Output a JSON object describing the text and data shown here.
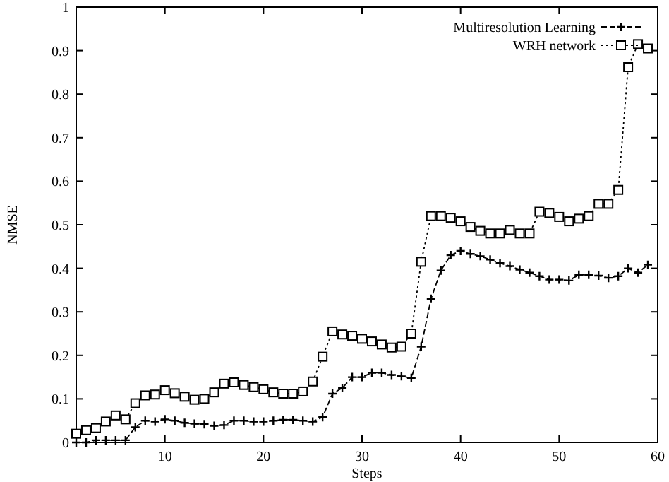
{
  "chart_data": {
    "type": "line",
    "xlabel": "Steps",
    "ylabel": "NMSE",
    "xlim": [
      1,
      60
    ],
    "ylim": [
      0,
      1
    ],
    "xticks": [
      10,
      20,
      30,
      40,
      50,
      60
    ],
    "yticks": [
      0,
      0.1,
      0.2,
      0.3,
      0.4,
      0.5,
      0.6,
      0.7,
      0.8,
      0.9,
      1
    ],
    "legend": "top right",
    "grid": false,
    "x": [
      1,
      2,
      3,
      4,
      5,
      6,
      7,
      8,
      9,
      10,
      11,
      12,
      13,
      14,
      15,
      16,
      17,
      18,
      19,
      20,
      21,
      22,
      23,
      24,
      25,
      26,
      27,
      28,
      29,
      30,
      31,
      32,
      33,
      34,
      35,
      36,
      37,
      38,
      39,
      40,
      41,
      42,
      43,
      44,
      45,
      46,
      47,
      48,
      49,
      50,
      51,
      52,
      53,
      54,
      55,
      56,
      57,
      58,
      59
    ],
    "series": [
      {
        "name": "Multiresolution Learning",
        "color": "#000000",
        "marker": "cross",
        "line_style": "dashed",
        "values": [
          0,
          0,
          0.005,
          0.005,
          0.005,
          0.005,
          0.035,
          0.05,
          0.048,
          0.053,
          0.05,
          0.045,
          0.043,
          0.042,
          0.038,
          0.04,
          0.05,
          0.05,
          0.048,
          0.048,
          0.05,
          0.052,
          0.052,
          0.05,
          0.048,
          0.058,
          0.112,
          0.125,
          0.15,
          0.15,
          0.16,
          0.16,
          0.155,
          0.152,
          0.148,
          0.22,
          0.33,
          0.395,
          0.43,
          0.44,
          0.433,
          0.428,
          0.42,
          0.412,
          0.405,
          0.397,
          0.39,
          0.382,
          0.374,
          0.374,
          0.372,
          0.385,
          0.385,
          0.383,
          0.378,
          0.382,
          0.4,
          0.39,
          0.408
        ]
      },
      {
        "name": "WRH network",
        "color": "#000000",
        "marker": "square",
        "line_style": "dotted",
        "values": [
          0.02,
          0.028,
          0.033,
          0.048,
          0.062,
          0.053,
          0.09,
          0.108,
          0.11,
          0.12,
          0.113,
          0.105,
          0.098,
          0.1,
          0.115,
          0.135,
          0.138,
          0.132,
          0.127,
          0.122,
          0.115,
          0.112,
          0.112,
          0.117,
          0.14,
          0.197,
          0.255,
          0.248,
          0.245,
          0.238,
          0.232,
          0.225,
          0.218,
          0.22,
          0.25,
          0.415,
          0.52,
          0.52,
          0.516,
          0.508,
          0.495,
          0.486,
          0.48,
          0.48,
          0.488,
          0.48,
          0.48,
          0.53,
          0.527,
          0.518,
          0.508,
          0.514,
          0.52,
          0.548,
          0.548,
          0.58,
          0.862,
          0.915,
          0.905
        ]
      }
    ]
  }
}
